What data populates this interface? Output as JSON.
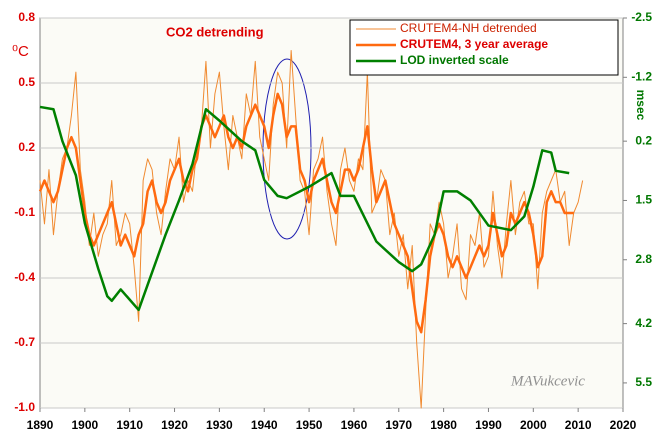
{
  "chart_data": {
    "type": "line",
    "title": "CO2 detrending",
    "y_label": "⁰C",
    "y2_label": "msec",
    "annotation": "MAVukcevic",
    "x": [
      1890,
      1891,
      1892,
      1893,
      1894,
      1895,
      1896,
      1897,
      1898,
      1899,
      1900,
      1901,
      1902,
      1903,
      1904,
      1905,
      1906,
      1907,
      1908,
      1909,
      1910,
      1911,
      1912,
      1913,
      1914,
      1915,
      1916,
      1917,
      1918,
      1919,
      1920,
      1921,
      1922,
      1923,
      1924,
      1925,
      1926,
      1927,
      1928,
      1929,
      1930,
      1931,
      1932,
      1933,
      1934,
      1935,
      1936,
      1937,
      1938,
      1939,
      1940,
      1941,
      1942,
      1943,
      1944,
      1945,
      1946,
      1947,
      1948,
      1949,
      1950,
      1951,
      1952,
      1953,
      1954,
      1955,
      1956,
      1957,
      1958,
      1959,
      1960,
      1961,
      1962,
      1963,
      1964,
      1965,
      1966,
      1967,
      1968,
      1969,
      1970,
      1971,
      1972,
      1973,
      1974,
      1975,
      1976,
      1977,
      1978,
      1979,
      1980,
      1981,
      1982,
      1983,
      1984,
      1985,
      1986,
      1987,
      1988,
      1989,
      1990,
      1991,
      1992,
      1993,
      1994,
      1995,
      1996,
      1997,
      1998,
      1999,
      2000,
      2001,
      2002,
      2003,
      2004,
      2005,
      2006,
      2007,
      2008,
      2009,
      2010,
      2011
    ],
    "xlim": [
      1890,
      2020
    ],
    "xticks": [
      1890,
      1900,
      1910,
      1920,
      1930,
      1940,
      1950,
      1960,
      1970,
      1980,
      1990,
      2000,
      2010,
      2020
    ],
    "ylim": [
      -1,
      0.8
    ],
    "yticks": [
      0.8,
      0.5,
      0.2,
      -0.1,
      -0.4,
      -0.7,
      {
        "value": -1,
        "label": "-1.0"
      }
    ],
    "y2lim": [
      6.05,
      -2.5
    ],
    "y2ticks": [
      -2.5,
      -1.2,
      0.2,
      1.5,
      2.8,
      4.2,
      5.5
    ],
    "grid": true,
    "legend": "top-right",
    "series": [
      {
        "name": "CRUTEM4-NH detrended",
        "color": "#f08a30",
        "width": 1,
        "values": [
          0.05,
          -0.15,
          0.1,
          -0.2,
          0.0,
          0.15,
          0.2,
          0.35,
          0.55,
          0.1,
          -0.05,
          -0.25,
          -0.1,
          -0.3,
          -0.2,
          -0.15,
          0.05,
          -0.25,
          -0.2,
          -0.1,
          -0.15,
          -0.35,
          -0.6,
          0.05,
          0.15,
          0.1,
          -0.1,
          -0.2,
          0.0,
          0.15,
          0.1,
          0.25,
          -0.05,
          0.05,
          0.0,
          0.2,
          0.3,
          0.6,
          0.2,
          0.45,
          0.55,
          0.3,
          0.1,
          0.35,
          0.25,
          0.15,
          0.45,
          0.35,
          0.6,
          0.25,
          0.15,
          0.05,
          0.4,
          0.55,
          0.5,
          0.2,
          0.65,
          0.35,
          0.05,
          0.0,
          -0.2,
          0.1,
          0.15,
          0.25,
          0.0,
          -0.15,
          -0.25,
          0.1,
          0.2,
          0.05,
          0.0,
          0.15,
          0.1,
          0.55,
          -0.1,
          -0.05,
          0.1,
          0.05,
          -0.2,
          -0.1,
          -0.3,
          -0.2,
          -0.45,
          -0.25,
          -0.7,
          -1.0,
          -0.55,
          -0.15,
          -0.2,
          -0.05,
          -0.15,
          -0.4,
          -0.3,
          -0.15,
          -0.45,
          -0.5,
          -0.2,
          -0.25,
          -0.1,
          -0.35,
          -0.3,
          0.0,
          -0.25,
          -0.4,
          -0.15,
          0.05,
          -0.2,
          -0.05,
          0.0,
          -0.15,
          -0.15,
          -0.45,
          -0.1,
          0.0,
          0.05,
          0.1,
          -0.05,
          0.0,
          -0.25,
          -0.1,
          -0.05,
          0.05
        ]
      },
      {
        "name": "CRUTEM4, 3 year average",
        "color": "#ff6a10",
        "width": 2.5,
        "values": [
          0.0,
          0.05,
          0.0,
          -0.05,
          0.0,
          0.1,
          0.2,
          0.25,
          0.2,
          0.05,
          -0.1,
          -0.2,
          -0.25,
          -0.2,
          -0.15,
          -0.1,
          -0.05,
          -0.15,
          -0.25,
          -0.2,
          -0.25,
          -0.3,
          -0.2,
          -0.15,
          0.0,
          0.05,
          -0.05,
          -0.1,
          -0.05,
          0.05,
          0.1,
          0.15,
          0.05,
          0.0,
          0.1,
          0.15,
          0.3,
          0.35,
          0.3,
          0.25,
          0.3,
          0.35,
          0.25,
          0.2,
          0.25,
          0.2,
          0.3,
          0.35,
          0.4,
          0.35,
          0.3,
          0.2,
          0.35,
          0.45,
          0.4,
          0.25,
          0.3,
          0.3,
          0.1,
          0.05,
          -0.05,
          0.05,
          0.1,
          0.15,
          0.05,
          -0.05,
          -0.1,
          0.0,
          0.1,
          0.1,
          0.05,
          0.1,
          0.2,
          0.3,
          0.1,
          -0.05,
          0.0,
          0.05,
          -0.05,
          -0.15,
          -0.2,
          -0.25,
          -0.3,
          -0.45,
          -0.6,
          -0.65,
          -0.5,
          -0.3,
          -0.2,
          -0.15,
          -0.2,
          -0.3,
          -0.35,
          -0.3,
          -0.35,
          -0.4,
          -0.35,
          -0.3,
          -0.25,
          -0.3,
          -0.25,
          -0.1,
          -0.2,
          -0.3,
          -0.25,
          -0.1,
          -0.15,
          -0.1,
          -0.05,
          -0.1,
          -0.2,
          -0.35,
          -0.3,
          -0.05,
          0.0,
          -0.05,
          -0.05,
          -0.1,
          -0.1,
          -0.1,
          null,
          null
        ]
      },
      {
        "name": "LOD inverted scale",
        "color": "#008000",
        "width": 2.5,
        "axis": "y2",
        "x": [
          1890,
          1893,
          1895,
          1898,
          1900,
          1903,
          1905,
          1906,
          1908,
          1912,
          1914,
          1918,
          1921,
          1924,
          1927,
          1930,
          1935,
          1938,
          1940,
          1943,
          1945,
          1950,
          1955,
          1957,
          1960,
          1965,
          1970,
          1973,
          1975,
          1978,
          1980,
          1983,
          1986,
          1990,
          1995,
          1998,
          2000,
          2002,
          2004,
          2005,
          2008
        ],
        "values": [
          -0.55,
          -0.5,
          0.2,
          0.95,
          2.0,
          3.0,
          3.6,
          3.7,
          3.45,
          3.9,
          3.35,
          2.25,
          1.5,
          0.7,
          -0.5,
          -0.25,
          0.2,
          0.4,
          1.05,
          1.4,
          1.45,
          1.2,
          0.9,
          1.4,
          1.4,
          2.4,
          2.85,
          3.05,
          2.9,
          2.25,
          1.3,
          1.3,
          1.5,
          2.05,
          2.15,
          1.85,
          1.2,
          0.4,
          0.45,
          0.85,
          0.9
        ]
      }
    ]
  }
}
